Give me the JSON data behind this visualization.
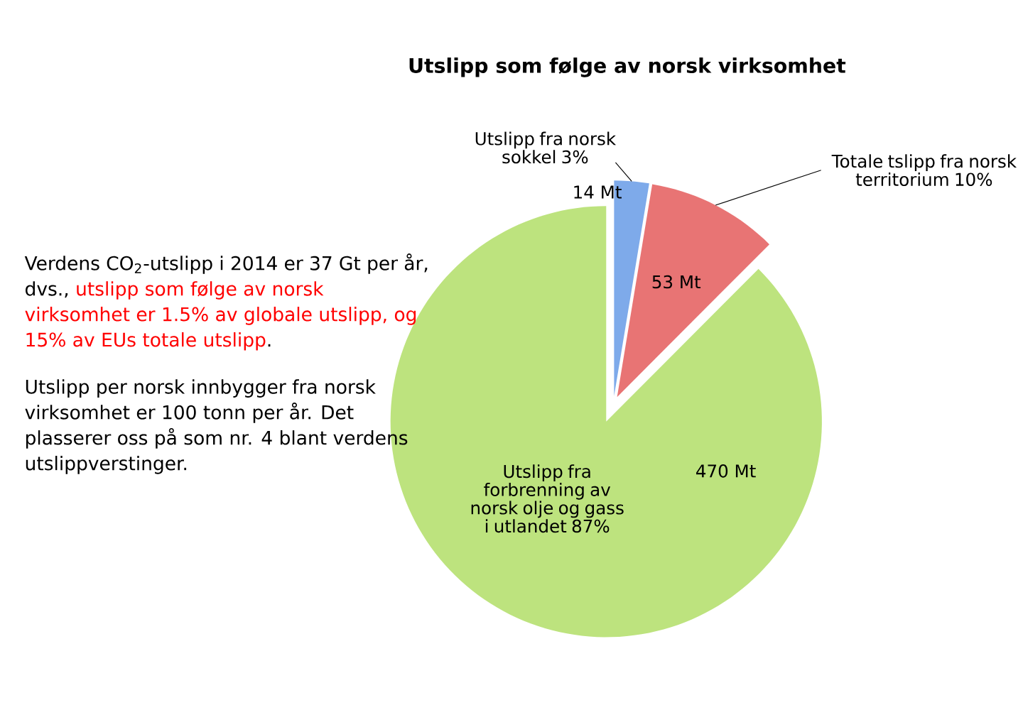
{
  "chart_data": {
    "type": "pie",
    "title": "Utslipp som følge av norsk virksomhet",
    "categories": [
      "Utslipp fra norsk sokkel 3%",
      "Totale tslipp fra norsk  territorium 10%",
      "Utslipp fra forbrenning av norsk olje og gass i utlandet 87%"
    ],
    "values": [
      14,
      53,
      470
    ],
    "value_labels": [
      "14 Mt",
      "53 Mt",
      "470 Mt"
    ],
    "colors": [
      "#7eaaea",
      "#e87474",
      "#bde37e"
    ],
    "annotations": [
      "Verdens  CO$_{2}$-utslipp i 2014 er 37 Gt per år, dvs.,",
      "utslipp som følge av norsk virksomhet er 1.5% av globale utslipp, og 15% av EUs totale utslipp",
      ".",
      "Utslipp per norsk innbygger fra  norsk virksomhet er 100 tonn per år. Det plasserer oss på som nr. 4 blant verdens utslippverstinger."
    ]
  }
}
